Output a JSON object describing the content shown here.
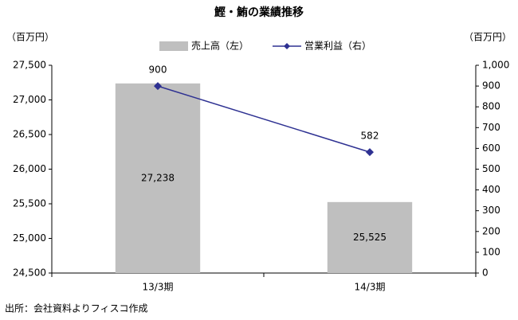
{
  "chart_data": {
    "type": "bar",
    "title": "鰹・鮪の業績推移",
    "y_label": "（百万円）",
    "y2_label": "（百万円）",
    "categories": [
      "13/3期",
      "14/3期"
    ],
    "series": [
      {
        "name": "売上高（左）",
        "type": "bar",
        "color": "#bfbfbf",
        "values": [
          27238,
          25525
        ],
        "value_labels": [
          "27,238",
          "25,525"
        ]
      },
      {
        "name": "営業利益（右）",
        "type": "line",
        "color": "#2e3192",
        "axis": "y2",
        "values": [
          900,
          582
        ]
      }
    ],
    "ylim": [
      24500,
      27500
    ],
    "yticks": [
      {
        "value": 24500,
        "label": "24,500"
      },
      {
        "value": 25000,
        "label": "25,000"
      },
      {
        "value": 25500,
        "label": "25,500"
      },
      {
        "value": 26000,
        "label": "26,000"
      },
      {
        "value": 26500,
        "label": "26,500"
      },
      {
        "value": 27000,
        "label": "27,000"
      },
      {
        "value": 27500,
        "label": "27,500"
      }
    ],
    "y2lim": [
      0,
      1000
    ],
    "y2ticks": [
      0,
      100,
      200,
      300,
      400,
      500,
      600,
      700,
      800,
      900,
      {
        "value": 1000,
        "label": "1,000"
      }
    ],
    "grid": false,
    "source": "出所：会社資料よりフィスコ作成"
  }
}
